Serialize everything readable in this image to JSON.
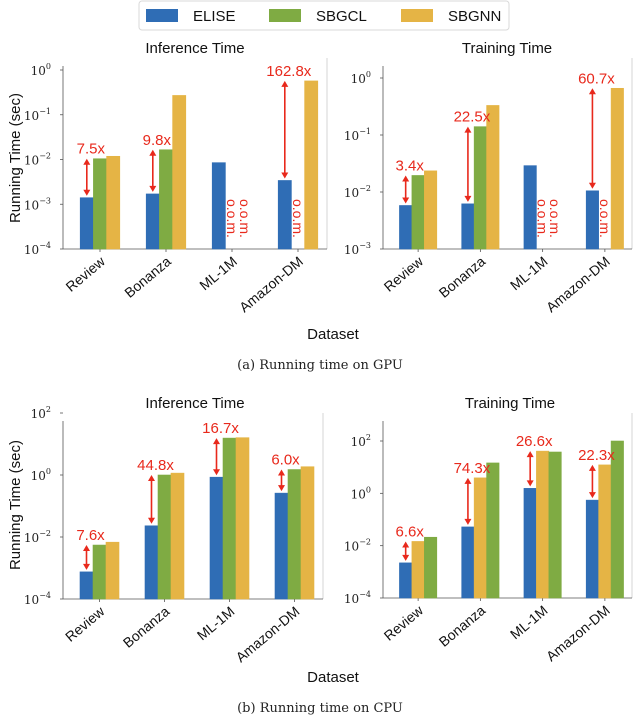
{
  "legend": [
    {
      "name": "ELISE",
      "color": "#2f6db5"
    },
    {
      "name": "SBGCL",
      "color": "#7fab43"
    },
    {
      "name": "SBGNN",
      "color": "#e5b445"
    }
  ],
  "annotation_color": "#e8291c",
  "shared": {
    "ylabel": "Running Time (sec)",
    "xlabel": "Dataset",
    "oom_label": "o.o.m."
  },
  "captions": {
    "gpu": "(a)  Running time on GPU",
    "cpu": "(b)  Running time on CPU"
  },
  "chart_data": [
    {
      "id": "gpu-inference",
      "type": "bar",
      "yscale": "log",
      "title": "Inference Time",
      "xlabel": "",
      "ylabel": "Running Time (sec)",
      "ylim_exp": [
        -4,
        0
      ],
      "yticks_exp": [
        -4,
        -3,
        -2,
        -1,
        0
      ],
      "categories": [
        "Review",
        "Bonanza",
        "ML-1M",
        "Amazon-DM"
      ],
      "series": [
        {
          "name": "ELISE",
          "color": "#2f6db5",
          "values": [
            0.0014,
            0.0017,
            0.0085,
            0.0034
          ]
        },
        {
          "name": "SBGCL",
          "color": "#7fab43",
          "values": [
            0.0104,
            0.0165,
            null,
            null
          ]
        },
        {
          "name": "SBGNN",
          "color": "#e5b445",
          "values": [
            0.0118,
            0.27,
            null,
            0.57
          ]
        }
      ],
      "oom": [
        {
          "category": "ML-1M",
          "series": "SBGCL"
        },
        {
          "category": "ML-1M",
          "series": "SBGNN"
        },
        {
          "category": "Amazon-DM",
          "series": "SBGCL"
        }
      ],
      "annotations": [
        {
          "category": "Review",
          "label": "7.5x",
          "target": "SBGCL"
        },
        {
          "category": "Bonanza",
          "label": "9.8x",
          "target": "SBGCL"
        },
        {
          "category": "Amazon-DM",
          "label": "162.8x",
          "target": "SBGNN"
        }
      ]
    },
    {
      "id": "gpu-training",
      "type": "bar",
      "yscale": "log",
      "title": "Training Time",
      "xlabel": "",
      "ylabel": "",
      "ylim_exp": [
        -3,
        0
      ],
      "yticks_exp": [
        -3,
        -2,
        -1,
        0
      ],
      "categories": [
        "Review",
        "Bonanza",
        "ML-1M",
        "Amazon-DM"
      ],
      "series": [
        {
          "name": "ELISE",
          "color": "#2f6db5",
          "values": [
            0.0058,
            0.0062,
            0.029,
            0.0105
          ]
        },
        {
          "name": "SBGCL",
          "color": "#7fab43",
          "values": [
            0.0195,
            0.14,
            null,
            null
          ]
        },
        {
          "name": "SBGNN",
          "color": "#e5b445",
          "values": [
            0.0235,
            0.33,
            null,
            0.66
          ]
        }
      ],
      "oom": [
        {
          "category": "ML-1M",
          "series": "SBGCL"
        },
        {
          "category": "ML-1M",
          "series": "SBGNN"
        },
        {
          "category": "Amazon-DM",
          "series": "SBGCL"
        }
      ],
      "annotations": [
        {
          "category": "Review",
          "label": "3.4x",
          "target": "SBGCL"
        },
        {
          "category": "Bonanza",
          "label": "22.5x",
          "target": "SBGCL"
        },
        {
          "category": "Amazon-DM",
          "label": "60.7x",
          "target": "SBGNN"
        }
      ]
    },
    {
      "id": "cpu-inference",
      "type": "bar",
      "yscale": "log",
      "title": "Inference Time",
      "xlabel": "Dataset",
      "ylabel": "Running Time (sec)",
      "ylim_exp": [
        -4,
        2
      ],
      "yticks_exp": [
        -4,
        -2,
        0,
        2
      ],
      "categories": [
        "Review",
        "Bonanza",
        "ML-1M",
        "Amazon-DM"
      ],
      "series": [
        {
          "name": "ELISE",
          "color": "#2f6db5",
          "values": [
            0.00075,
            0.023,
            0.85,
            0.26
          ]
        },
        {
          "name": "SBGCL",
          "color": "#7fab43",
          "values": [
            0.0055,
            1.0,
            15.5,
            1.5
          ]
        },
        {
          "name": "SBGNN",
          "color": "#e5b445",
          "values": [
            0.0068,
            1.15,
            16.0,
            1.85
          ]
        }
      ],
      "oom": [],
      "annotations": [
        {
          "category": "Review",
          "label": "7.6x",
          "target": "SBGCL"
        },
        {
          "category": "Bonanza",
          "label": "44.8x",
          "target": "SBGCL"
        },
        {
          "category": "ML-1M",
          "label": "16.7x",
          "target": "SBGCL"
        },
        {
          "category": "Amazon-DM",
          "label": "6.0x",
          "target": "SBGCL"
        }
      ]
    },
    {
      "id": "cpu-training",
      "type": "bar",
      "yscale": "log",
      "title": "Training Time",
      "xlabel": "",
      "ylabel": "",
      "ylim_exp": [
        -4,
        3
      ],
      "yticks_exp": [
        -4,
        -2,
        0,
        2
      ],
      "categories": [
        "Review",
        "Bonanza",
        "ML-1M",
        "Amazon-DM"
      ],
      "series": [
        {
          "name": "ELISE",
          "color": "#2f6db5",
          "values": [
            0.0022,
            0.052,
            1.55,
            0.55
          ]
        },
        {
          "name": "SBGNN",
          "color": "#e5b445",
          "values": [
            0.0145,
            3.9,
            41.0,
            12.2
          ]
        },
        {
          "name": "SBGCL",
          "color": "#7fab43",
          "values": [
            0.021,
            14.5,
            38.0,
            100.0
          ]
        }
      ],
      "oom": [],
      "annotations": [
        {
          "category": "Review",
          "label": "6.6x",
          "target": "SBGNN"
        },
        {
          "category": "Bonanza",
          "label": "74.3x",
          "target": "SBGNN"
        },
        {
          "category": "ML-1M",
          "label": "26.6x",
          "target": "SBGNN"
        },
        {
          "category": "Amazon-DM",
          "label": "22.3x",
          "target": "SBGNN"
        }
      ]
    }
  ]
}
